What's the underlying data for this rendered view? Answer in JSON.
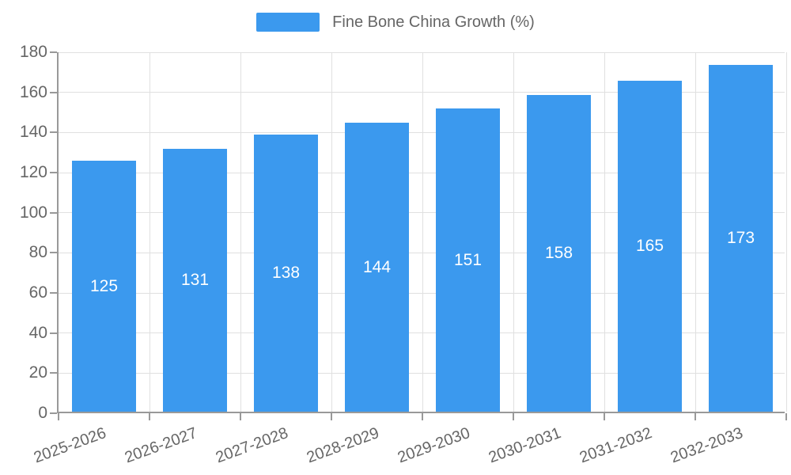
{
  "legend": {
    "label": "Fine Bone China Growth (%)"
  },
  "chart_data": {
    "type": "bar",
    "title": "Fine Bone China Growth (%)",
    "categories": [
      "2025-2026",
      "2026-2027",
      "2027-2028",
      "2028-2029",
      "2029-2030",
      "2030-2031",
      "2031-2032",
      "2032-2033"
    ],
    "values": [
      125,
      131,
      138,
      144,
      151,
      158,
      165,
      173
    ],
    "xlabel": "",
    "ylabel": "",
    "ylim": [
      0,
      180
    ],
    "yticks": [
      0,
      20,
      40,
      60,
      80,
      100,
      120,
      140,
      160,
      180
    ],
    "grid": true,
    "legend_position": "top",
    "bar_color": "#3B99EE",
    "bar_label_color": "#ffffff",
    "axis_color": "#999999",
    "grid_color": "#e0e0e0",
    "text_color": "#666666"
  }
}
